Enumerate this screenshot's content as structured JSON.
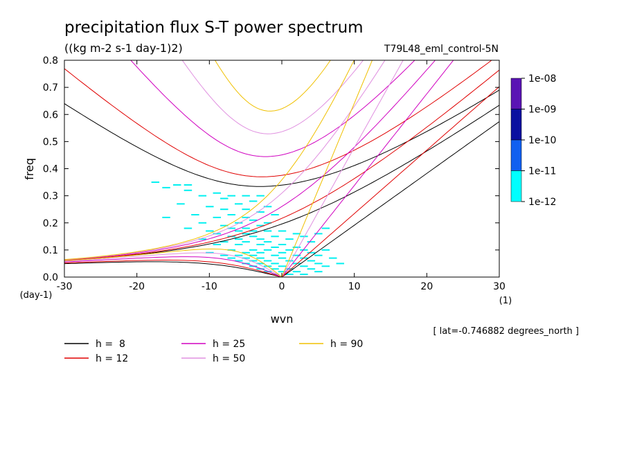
{
  "chart_data": {
    "type": "heatmap",
    "title": "precipitation flux S-T power spectrum",
    "subtitle": "((kg m-2 s-1 day-1)2)",
    "run_label": "T79L48_eml_control-5N",
    "xlabel": "wvn",
    "ylabel": "freq",
    "x_unit_label": "(1)",
    "y_unit_label": "(day-1)",
    "footnote": "[ lat=-0.746882 degrees_north ]",
    "xlim": [
      -30,
      30
    ],
    "ylim": [
      0,
      0.8
    ],
    "x_ticks": [
      -30,
      -20,
      -10,
      0,
      10,
      20,
      30
    ],
    "x_tick_labels": [
      "-30",
      "-20",
      "-10",
      "0",
      "10",
      "20",
      "30"
    ],
    "y_ticks": [
      0,
      0.1,
      0.2,
      0.3,
      0.4,
      0.5,
      0.6,
      0.7,
      0.8
    ],
    "y_tick_labels": [
      "0.0",
      "0.1",
      "0.2",
      "0.3",
      "0.4",
      "0.5",
      "0.6",
      "0.7",
      "0.8"
    ],
    "colorbar": {
      "labels": [
        "1e-08",
        "1e-09",
        "1e-10",
        "1e-11",
        "1e-12"
      ],
      "colors": [
        "#5a14b4",
        "#0a10a0",
        "#1060f0",
        "#00ffff"
      ]
    },
    "spectrum_color": "#00f0f0",
    "dispersion_curves": [
      {
        "label": "h =  8",
        "h": 8,
        "color": "#000000"
      },
      {
        "label": "h = 12",
        "h": 12,
        "color": "#e00000"
      },
      {
        "label": "h = 25",
        "h": 25,
        "color": "#d000c0"
      },
      {
        "label": "h = 50",
        "h": 50,
        "color": "#e090e0"
      },
      {
        "label": "h = 90",
        "h": 90,
        "color": "#f0c000"
      }
    ],
    "spectrum_cells": [
      [
        -17.5,
        0.35
      ],
      [
        -14.5,
        0.34
      ],
      [
        -13,
        0.34
      ],
      [
        -16,
        0.33
      ],
      [
        -13,
        0.32
      ],
      [
        -11,
        0.3
      ],
      [
        -9,
        0.31
      ],
      [
        -7,
        0.3
      ],
      [
        -5,
        0.3
      ],
      [
        -3,
        0.3
      ],
      [
        -8,
        0.29
      ],
      [
        -4,
        0.28
      ],
      [
        -14,
        0.27
      ],
      [
        -6,
        0.27
      ],
      [
        -2,
        0.26
      ],
      [
        -10,
        0.26
      ],
      [
        -8,
        0.25
      ],
      [
        -5,
        0.25
      ],
      [
        -3,
        0.24
      ],
      [
        -12,
        0.23
      ],
      [
        -7,
        0.23
      ],
      [
        -1,
        0.23
      ],
      [
        -16,
        0.22
      ],
      [
        -9,
        0.22
      ],
      [
        -5,
        0.22
      ],
      [
        -4,
        0.21
      ],
      [
        -11,
        0.2
      ],
      [
        -6,
        0.2
      ],
      [
        -2,
        0.2
      ],
      [
        -8,
        0.19
      ],
      [
        -3,
        0.19
      ],
      [
        -13,
        0.18
      ],
      [
        -7,
        0.18
      ],
      [
        -5,
        0.18
      ],
      [
        -10,
        0.17
      ],
      [
        -6,
        0.17
      ],
      [
        -4,
        0.17
      ],
      [
        -2,
        0.17
      ],
      [
        0,
        0.17
      ],
      [
        2,
        0.16
      ],
      [
        -9,
        0.16
      ],
      [
        -5,
        0.16
      ],
      [
        -7,
        0.15
      ],
      [
        -4,
        0.15
      ],
      [
        -1,
        0.15
      ],
      [
        -11,
        0.14
      ],
      [
        -6,
        0.14
      ],
      [
        -3,
        0.14
      ],
      [
        1,
        0.14
      ],
      [
        5,
        0.16
      ],
      [
        6,
        0.18
      ],
      [
        3,
        0.15
      ],
      [
        -8,
        0.13
      ],
      [
        -5,
        0.13
      ],
      [
        -2,
        0.13
      ],
      [
        0,
        0.12
      ],
      [
        4,
        0.13
      ],
      [
        -9,
        0.12
      ],
      [
        -6,
        0.12
      ],
      [
        -3,
        0.12
      ],
      [
        -1,
        0.11
      ],
      [
        2,
        0.11
      ],
      [
        -7,
        0.1
      ],
      [
        -4,
        0.1
      ],
      [
        -2,
        0.1
      ],
      [
        1,
        0.1
      ],
      [
        3,
        0.1
      ],
      [
        6,
        0.1
      ],
      [
        -10,
        0.09
      ],
      [
        -5,
        0.09
      ],
      [
        -3,
        0.09
      ],
      [
        0,
        0.09
      ],
      [
        4,
        0.09
      ],
      [
        -8,
        0.08
      ],
      [
        -6,
        0.08
      ],
      [
        -4,
        0.08
      ],
      [
        -1,
        0.08
      ],
      [
        2,
        0.08
      ],
      [
        5,
        0.08
      ],
      [
        -7,
        0.07
      ],
      [
        -5,
        0.07
      ],
      [
        -3,
        0.07
      ],
      [
        0,
        0.07
      ],
      [
        3,
        0.07
      ],
      [
        7,
        0.07
      ],
      [
        -6,
        0.06
      ],
      [
        -4,
        0.06
      ],
      [
        -2,
        0.06
      ],
      [
        1,
        0.06
      ],
      [
        4,
        0.06
      ],
      [
        -5,
        0.05
      ],
      [
        -3,
        0.05
      ],
      [
        -1,
        0.05
      ],
      [
        2,
        0.05
      ],
      [
        5,
        0.05
      ],
      [
        8,
        0.05
      ],
      [
        -4,
        0.04
      ],
      [
        -2,
        0.04
      ],
      [
        0,
        0.04
      ],
      [
        3,
        0.04
      ],
      [
        6,
        0.04
      ],
      [
        -3,
        0.03
      ],
      [
        -1,
        0.03
      ],
      [
        1,
        0.03
      ],
      [
        4,
        0.03
      ],
      [
        -2,
        0.02
      ],
      [
        0,
        0.02
      ],
      [
        2,
        0.02
      ],
      [
        5,
        0.02
      ],
      [
        -1,
        0.01
      ],
      [
        1,
        0.01
      ],
      [
        3,
        0.01
      ]
    ]
  }
}
